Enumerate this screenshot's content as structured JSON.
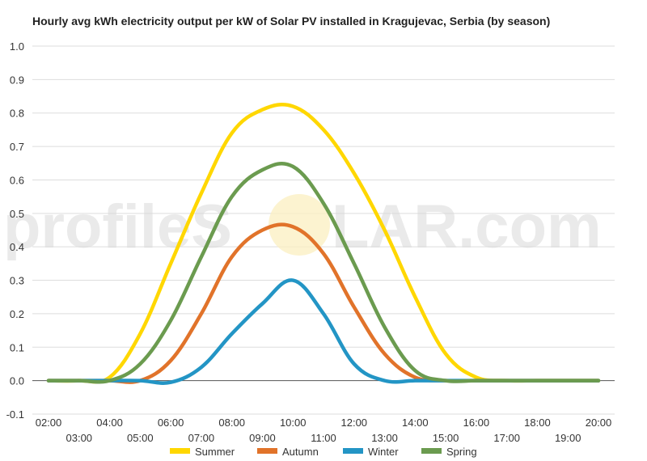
{
  "watermark": {
    "part1": "profileS",
    "part2": "LAR.com"
  },
  "chart_data": {
    "type": "line",
    "title": "Hourly avg kWh electricity output per kW of Solar PV installed in Kragujevac, Serbia (by season)",
    "xlabel": "",
    "ylabel": "",
    "categories": [
      "02:00",
      "03:00",
      "04:00",
      "05:00",
      "06:00",
      "07:00",
      "08:00",
      "09:00",
      "10:00",
      "11:00",
      "12:00",
      "13:00",
      "14:00",
      "15:00",
      "16:00",
      "17:00",
      "18:00",
      "19:00",
      "20:00"
    ],
    "ylim": [
      -0.1,
      1.0
    ],
    "yticks": [
      "-0.1",
      "0.0",
      "0.1",
      "0.2",
      "0.3",
      "0.4",
      "0.5",
      "0.6",
      "0.7",
      "0.8",
      "0.9",
      "1.0"
    ],
    "grid": true,
    "legend_position": "bottom",
    "series": [
      {
        "name": "Summer",
        "color": "#ffd700",
        "values": [
          0.0,
          0.0,
          0.01,
          0.14,
          0.35,
          0.56,
          0.74,
          0.81,
          0.82,
          0.75,
          0.62,
          0.45,
          0.25,
          0.08,
          0.01,
          0.0,
          0.0,
          0.0,
          0.0
        ]
      },
      {
        "name": "Autumn",
        "color": "#e1732a",
        "values": [
          0.0,
          0.0,
          0.0,
          0.0,
          0.06,
          0.2,
          0.37,
          0.45,
          0.46,
          0.38,
          0.22,
          0.08,
          0.01,
          0.0,
          0.0,
          0.0,
          0.0,
          0.0,
          0.0
        ]
      },
      {
        "name": "Winter",
        "color": "#2395c5",
        "values": [
          0.0,
          0.0,
          0.0,
          0.0,
          -0.005,
          0.04,
          0.14,
          0.23,
          0.3,
          0.2,
          0.05,
          0.0,
          0.0,
          0.0,
          0.0,
          0.0,
          0.0,
          0.0,
          0.0
        ]
      },
      {
        "name": "Spring",
        "color": "#6b9b4f",
        "values": [
          0.0,
          0.0,
          0.0,
          0.05,
          0.18,
          0.37,
          0.55,
          0.63,
          0.64,
          0.53,
          0.35,
          0.16,
          0.03,
          0.0,
          0.0,
          0.0,
          0.0,
          0.0,
          0.0
        ]
      }
    ]
  }
}
